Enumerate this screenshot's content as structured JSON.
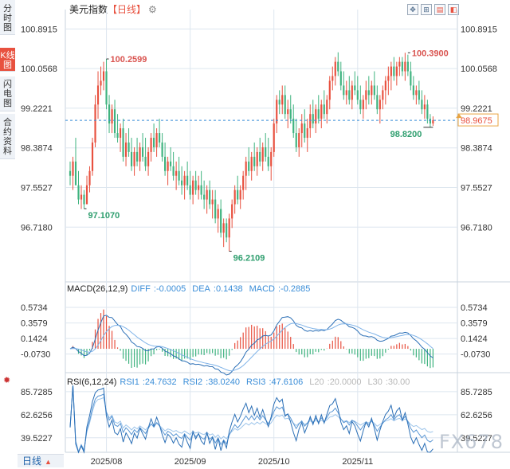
{
  "tabs": [
    {
      "label": "分时图",
      "active": false
    },
    {
      "label": "K线图",
      "active": true
    },
    {
      "label": "闪电图",
      "active": false
    },
    {
      "label": "合约资料",
      "active": false
    }
  ],
  "header": {
    "name": "美元指数",
    "period_label": "【日线】",
    "settings_icon": "gear-icon"
  },
  "toolbar": [
    "move-icon",
    "zoom-in-icon",
    "zoom-out-icon",
    "fullscreen-icon"
  ],
  "chart_data": [
    {
      "type": "candlestick",
      "ylim": [
        95.8,
        101.3
      ],
      "yticks": [
        "100.8915",
        "100.0568",
        "99.2221",
        "98.3874",
        "97.5527",
        "96.7180"
      ],
      "xticks": [
        {
          "label": "2025/08",
          "i": 13
        },
        {
          "label": "2025/09",
          "i": 43
        },
        {
          "label": "2025/10",
          "i": 73
        },
        {
          "label": "2025/11",
          "i": 103
        }
      ],
      "last_price": "98.9675",
      "last_price_value": 98.9675,
      "annotations": [
        {
          "label": "100.2599",
          "i": 13,
          "value": 100.2599,
          "type": "high"
        },
        {
          "label": "97.1070",
          "i": 5,
          "value": 97.107,
          "type": "low"
        },
        {
          "label": "96.2109",
          "i": 57,
          "value": 96.2109,
          "type": "low"
        },
        {
          "label": "100.3900",
          "i": 121,
          "value": 100.39,
          "type": "high"
        },
        {
          "label": "98.8200",
          "i": 130,
          "value": 98.82,
          "type": "low"
        }
      ],
      "candles": [
        [
          97.9,
          98.1,
          97.6,
          97.8
        ],
        [
          97.8,
          98.2,
          97.5,
          98.1
        ],
        [
          98.1,
          98.6,
          97.6,
          97.6
        ],
        [
          97.6,
          97.9,
          97.2,
          97.3
        ],
        [
          97.3,
          97.6,
          97.1,
          97.4
        ],
        [
          97.4,
          97.5,
          97.107,
          97.2
        ],
        [
          97.2,
          97.8,
          97.2,
          97.6
        ],
        [
          97.6,
          98.0,
          97.45,
          97.9
        ],
        [
          97.9,
          98.6,
          97.8,
          98.5
        ],
        [
          98.5,
          99.5,
          98.4,
          99.3
        ],
        [
          99.3,
          100.0,
          99.0,
          99.7
        ],
        [
          99.7,
          100.1,
          99.5,
          99.8
        ],
        [
          99.8,
          100.2,
          99.6,
          100.0
        ],
        [
          100.0,
          100.2599,
          99.2,
          99.3
        ],
        [
          99.3,
          99.5,
          98.7,
          98.9
        ],
        [
          98.9,
          99.3,
          98.7,
          99.2
        ],
        [
          99.2,
          99.4,
          98.6,
          98.7
        ],
        [
          98.7,
          99.1,
          98.5,
          98.6
        ],
        [
          98.6,
          98.9,
          98.3,
          98.8
        ],
        [
          98.8,
          99.0,
          98.1,
          98.2
        ],
        [
          98.2,
          98.7,
          98.0,
          98.5
        ],
        [
          98.5,
          98.8,
          98.2,
          98.3
        ],
        [
          98.3,
          98.6,
          97.9,
          98.0
        ],
        [
          98.0,
          98.4,
          97.8,
          98.3
        ],
        [
          98.3,
          98.6,
          98.0,
          98.1
        ],
        [
          98.1,
          98.5,
          97.9,
          98.4
        ],
        [
          98.4,
          98.7,
          98.1,
          98.2
        ],
        [
          98.2,
          98.6,
          97.9,
          98.0
        ],
        [
          98.0,
          98.4,
          97.8,
          98.3
        ],
        [
          98.3,
          98.7,
          98.1,
          98.6
        ],
        [
          98.6,
          98.9,
          98.3,
          98.4
        ],
        [
          98.4,
          98.8,
          98.2,
          98.7
        ],
        [
          98.7,
          99.0,
          98.4,
          98.5
        ],
        [
          98.5,
          98.7,
          98.1,
          98.2
        ],
        [
          98.2,
          98.5,
          97.8,
          97.9
        ],
        [
          97.9,
          98.2,
          97.6,
          98.1
        ],
        [
          98.1,
          98.4,
          97.9,
          98.0
        ],
        [
          98.0,
          98.3,
          97.7,
          97.8
        ],
        [
          97.8,
          98.1,
          97.5,
          97.9
        ],
        [
          97.9,
          98.2,
          97.6,
          97.7
        ],
        [
          97.7,
          98.0,
          97.4,
          97.6
        ],
        [
          97.6,
          97.9,
          97.3,
          97.8
        ],
        [
          97.8,
          98.1,
          97.5,
          97.6
        ],
        [
          97.6,
          97.9,
          97.3,
          97.4
        ],
        [
          97.4,
          97.8,
          97.2,
          97.7
        ],
        [
          97.7,
          97.9,
          97.4,
          97.5
        ],
        [
          97.5,
          97.8,
          97.3,
          97.6
        ],
        [
          97.6,
          97.9,
          97.3,
          97.4
        ],
        [
          97.4,
          97.7,
          97.1,
          97.3
        ],
        [
          97.3,
          97.6,
          97.0,
          97.5
        ],
        [
          97.5,
          97.7,
          97.1,
          97.2
        ],
        [
          97.2,
          97.5,
          96.9,
          97.3
        ],
        [
          97.3,
          97.5,
          96.8,
          96.9
        ],
        [
          96.9,
          97.2,
          96.6,
          97.1
        ],
        [
          97.1,
          97.3,
          96.5,
          96.6
        ],
        [
          96.6,
          96.9,
          96.3,
          96.8
        ],
        [
          96.8,
          96.9,
          96.4,
          96.5
        ],
        [
          96.5,
          97.0,
          96.2109,
          96.9
        ],
        [
          96.9,
          97.3,
          96.7,
          97.2
        ],
        [
          97.2,
          97.6,
          97.0,
          97.5
        ],
        [
          97.5,
          97.8,
          97.2,
          97.3
        ],
        [
          97.3,
          97.6,
          97.1,
          97.5
        ],
        [
          97.5,
          97.9,
          97.3,
          97.8
        ],
        [
          97.8,
          98.2,
          97.5,
          98.1
        ],
        [
          98.1,
          98.4,
          97.8,
          97.9
        ],
        [
          97.9,
          98.3,
          97.7,
          98.2
        ],
        [
          98.2,
          98.5,
          97.9,
          98.0
        ],
        [
          98.0,
          98.4,
          97.8,
          98.3
        ],
        [
          98.3,
          98.6,
          98.0,
          98.1
        ],
        [
          98.1,
          98.5,
          97.9,
          98.4
        ],
        [
          98.4,
          98.7,
          98.1,
          98.2
        ],
        [
          98.2,
          98.6,
          97.9,
          98.0
        ],
        [
          98.0,
          98.4,
          97.7,
          98.3
        ],
        [
          98.3,
          99.0,
          98.2,
          98.9
        ],
        [
          98.9,
          99.5,
          98.7,
          99.4
        ],
        [
          99.4,
          99.6,
          99.1,
          99.3
        ],
        [
          99.3,
          99.7,
          99.1,
          99.5
        ],
        [
          99.5,
          99.7,
          99.0,
          99.1
        ],
        [
          99.1,
          99.4,
          98.8,
          99.2
        ],
        [
          99.2,
          99.5,
          98.9,
          99.0
        ],
        [
          99.0,
          99.3,
          98.6,
          98.7
        ],
        [
          98.7,
          99.0,
          98.3,
          98.4
        ],
        [
          98.4,
          98.8,
          98.2,
          98.7
        ],
        [
          98.7,
          99.1,
          98.4,
          98.9
        ],
        [
          98.9,
          99.2,
          98.5,
          98.6
        ],
        [
          98.6,
          99.0,
          98.3,
          98.8
        ],
        [
          98.8,
          99.3,
          98.6,
          99.1
        ],
        [
          99.1,
          99.4,
          98.8,
          98.9
        ],
        [
          98.9,
          99.3,
          98.7,
          99.2
        ],
        [
          99.2,
          99.5,
          98.9,
          99.0
        ],
        [
          99.0,
          99.4,
          98.8,
          99.3
        ],
        [
          99.3,
          99.6,
          99.0,
          99.1
        ],
        [
          99.1,
          99.5,
          98.9,
          99.4
        ],
        [
          99.4,
          99.9,
          99.2,
          99.8
        ],
        [
          99.8,
          100.1,
          99.6,
          99.9
        ],
        [
          99.9,
          100.3,
          99.7,
          100.2
        ],
        [
          100.2,
          100.4,
          99.9,
          100.0
        ],
        [
          100.0,
          100.2,
          99.6,
          99.7
        ],
        [
          99.7,
          100.0,
          99.4,
          99.5
        ],
        [
          99.5,
          99.8,
          99.3,
          99.6
        ],
        [
          99.6,
          99.9,
          99.3,
          99.4
        ],
        [
          99.4,
          99.8,
          99.2,
          99.7
        ],
        [
          99.7,
          100.0,
          99.5,
          99.6
        ],
        [
          99.6,
          99.9,
          99.3,
          99.4
        ],
        [
          99.4,
          99.7,
          99.1,
          99.2
        ],
        [
          99.2,
          99.5,
          99.0,
          99.4
        ],
        [
          99.4,
          99.8,
          99.2,
          99.6
        ],
        [
          99.6,
          99.9,
          99.3,
          99.5
        ],
        [
          99.5,
          99.8,
          99.3,
          99.7
        ],
        [
          99.7,
          100.0,
          99.4,
          99.5
        ],
        [
          99.5,
          99.7,
          99.1,
          99.2
        ],
        [
          99.2,
          99.5,
          98.9,
          99.4
        ],
        [
          99.4,
          99.7,
          99.2,
          99.6
        ],
        [
          99.6,
          99.9,
          99.3,
          99.8
        ],
        [
          99.8,
          100.1,
          99.5,
          99.9
        ],
        [
          99.9,
          100.2,
          99.6,
          100.1
        ],
        [
          100.1,
          100.3,
          99.8,
          99.9
        ],
        [
          99.9,
          100.2,
          99.7,
          100.1
        ],
        [
          100.1,
          100.3,
          99.9,
          100.2
        ],
        [
          100.2,
          100.3,
          99.9,
          100.0
        ],
        [
          100.0,
          100.39,
          99.8,
          100.2
        ],
        [
          100.2,
          100.35,
          99.9,
          100.0
        ],
        [
          100.0,
          100.2,
          99.6,
          99.7
        ],
        [
          99.7,
          99.9,
          99.4,
          99.5
        ],
        [
          99.5,
          99.7,
          99.3,
          99.6
        ],
        [
          99.6,
          99.8,
          99.3,
          99.4
        ],
        [
          99.4,
          99.6,
          99.1,
          99.2
        ],
        [
          99.2,
          99.5,
          99.0,
          99.3
        ],
        [
          99.3,
          99.4,
          98.9,
          99.0
        ],
        [
          99.0,
          99.1,
          98.82,
          98.9
        ],
        [
          98.9,
          99.05,
          98.85,
          98.97
        ]
      ],
      "candle_x_start": 88,
      "candle_step": 3.503
    },
    {
      "type": "macd",
      "title": "MACD(26,12,9)",
      "legend": [
        {
          "key": "DIFF",
          "value": "-0.0005"
        },
        {
          "key": "DEA",
          "value": "0.1438"
        },
        {
          "key": "MACD",
          "value": "-0.2885"
        }
      ],
      "ylim": [
        -0.33,
        0.75
      ],
      "yticks": [
        "0.5734",
        "0.3579",
        "0.1424",
        "-0.0730"
      ]
    },
    {
      "type": "rsi",
      "title": "RSI(6,12,24)",
      "legend": [
        {
          "key": "RSI1",
          "value": "24.7632"
        },
        {
          "key": "RSI2",
          "value": "38.0240"
        },
        {
          "key": "RSI3",
          "value": "47.6106"
        },
        {
          "key": "L20",
          "value": "20.0000"
        },
        {
          "key": "L30",
          "value": "30.00"
        }
      ],
      "ylim": [
        25,
        92
      ],
      "yticks": [
        "85.7285",
        "62.6256",
        "39.5227"
      ]
    }
  ],
  "colors": {
    "up": "#e8513f",
    "down": "#3fb37f",
    "line": "#3b8ed8",
    "grid": "#dde6ef",
    "label_red": "#d9534f",
    "label_green": "#2e9e6e"
  },
  "period_button": "日线",
  "watermark": "FX678"
}
